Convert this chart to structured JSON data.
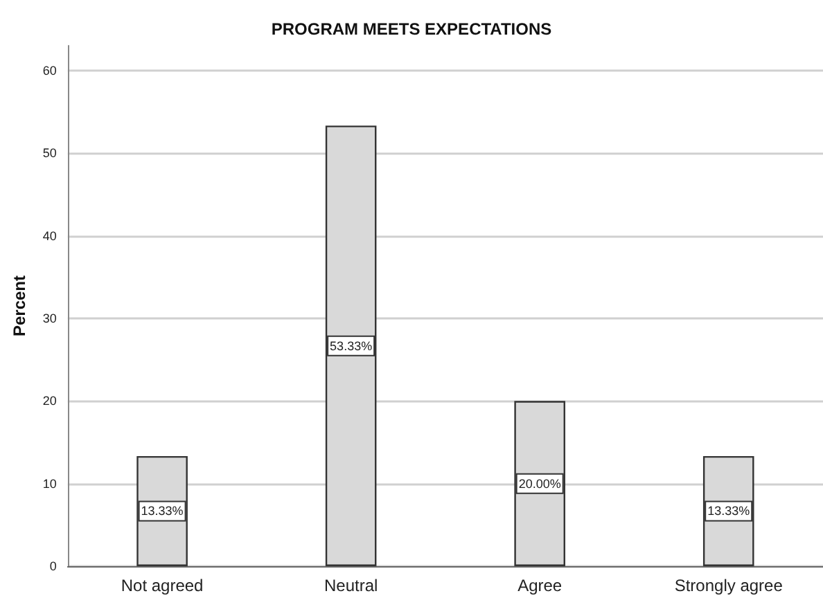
{
  "chart_data": {
    "type": "bar",
    "title": "PROGRAM MEETS EXPECTATIONS",
    "ylabel": "Percent",
    "categories": [
      "Not agreed",
      "Neutral",
      "Agree",
      "Strongly agree"
    ],
    "values": [
      13.33,
      53.33,
      20.0,
      13.33
    ],
    "value_labels": [
      "13.33%",
      "53.33%",
      "20.00%",
      "13.33%"
    ],
    "color": "#d9d9d9",
    "ylim": [
      0,
      63
    ],
    "yticks": [
      0,
      10,
      20,
      30,
      40,
      50,
      60
    ],
    "grid": "y"
  }
}
